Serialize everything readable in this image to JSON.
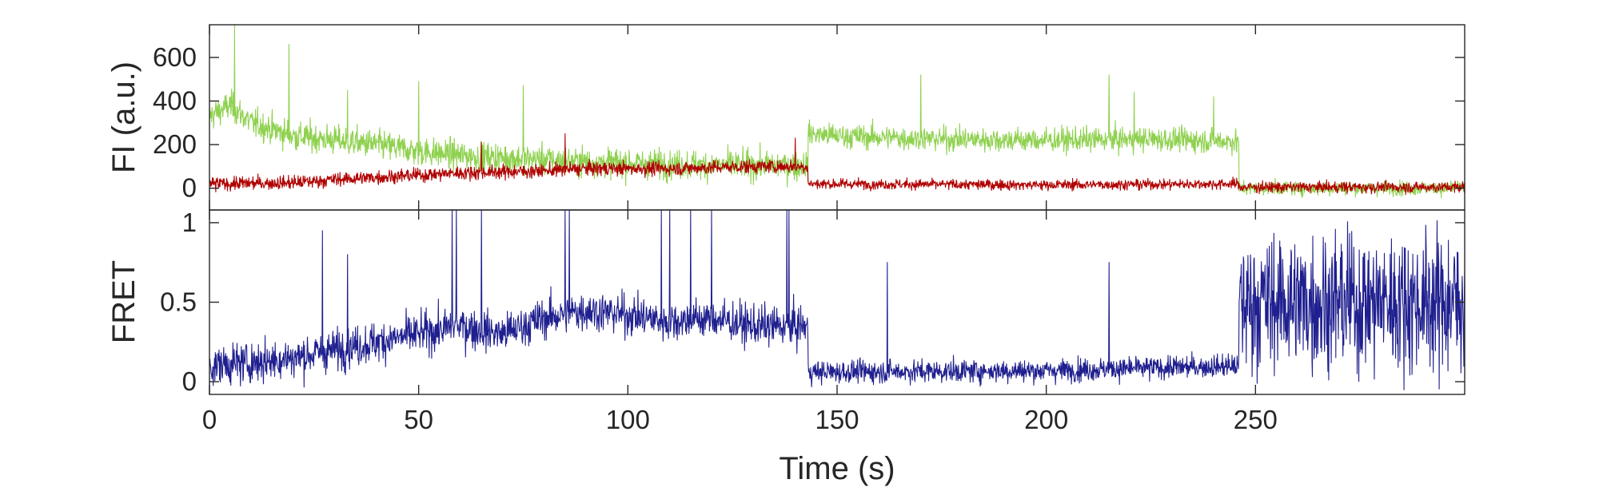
{
  "chart_data": [
    {
      "type": "line",
      "panel": "top",
      "title": "",
      "xlabel": "",
      "ylabel": "FI (a.u.)",
      "xlim": [
        0,
        300
      ],
      "ylim": [
        -100,
        750
      ],
      "xticks": [
        0,
        50,
        100,
        150,
        200,
        250
      ],
      "yticks": [
        0,
        200,
        400,
        600
      ],
      "ytick_labels": [
        "0",
        "200",
        "400",
        "600"
      ],
      "grid": false,
      "legend": "none",
      "series": [
        {
          "color": "#8fd14f",
          "segments": [
            {
              "x": [
                0,
                5,
                10,
                20,
                30,
                40,
                50,
                60,
                70,
                80,
                90,
                100,
                110,
                120,
                130,
                140,
                143
              ],
              "y": [
                330,
                380,
                300,
                240,
                220,
                200,
                170,
                150,
                140,
                130,
                120,
                115,
                110,
                105,
                105,
                105,
                105
              ],
              "noise": 85
            },
            {
              "x": [
                143,
                150,
                175,
                200,
                225,
                246
              ],
              "y": [
                250,
                240,
                225,
                220,
                225,
                215
              ],
              "noise": 70
            },
            {
              "x": [
                246,
                300
              ],
              "y": [
                0,
                0
              ],
              "noise": 40
            }
          ],
          "spikes": [
            [
              6,
              750
            ],
            [
              19,
              660
            ],
            [
              33,
              450
            ],
            [
              50,
              490
            ],
            [
              75,
              470
            ],
            [
              170,
              520
            ],
            [
              215,
              520
            ],
            [
              221,
              440
            ],
            [
              240,
              420
            ]
          ]
        },
        {
          "color": "#b00000",
          "segments": [
            {
              "x": [
                0,
                20,
                30,
                40,
                50,
                60,
                70,
                80,
                90,
                100,
                110,
                120,
                130,
                140,
                143
              ],
              "y": [
                20,
                25,
                40,
                50,
                60,
                70,
                75,
                80,
                90,
                90,
                90,
                95,
                100,
                100,
                100
              ],
              "noise": 40
            },
            {
              "x": [
                143,
                200,
                246
              ],
              "y": [
                20,
                15,
                20
              ],
              "noise": 30
            },
            {
              "x": [
                246,
                300
              ],
              "y": [
                5,
                5
              ],
              "noise": 32
            }
          ],
          "spikes": [
            [
              85,
              250
            ],
            [
              140,
              230
            ],
            [
              65,
              210
            ]
          ]
        }
      ]
    },
    {
      "type": "line",
      "panel": "bottom",
      "title": "",
      "xlabel": "Time (s)",
      "ylabel": "FRET",
      "xlim": [
        0,
        300
      ],
      "ylim": [
        -0.08,
        1.08
      ],
      "xticks": [
        0,
        50,
        100,
        150,
        200,
        250
      ],
      "xtick_labels": [
        "0",
        "50",
        "100",
        "150",
        "200",
        "250"
      ],
      "yticks": [
        0,
        0.5,
        1
      ],
      "ytick_labels": [
        "0",
        "0.5",
        "1"
      ],
      "grid": false,
      "legend": "none",
      "series": [
        {
          "color": "#1f1f8f",
          "segments": [
            {
              "x": [
                0,
                10,
                20,
                30,
                40,
                50,
                60,
                70,
                80,
                90,
                100,
                110,
                120,
                130,
                140,
                143
              ],
              "y": [
                0.1,
                0.12,
                0.15,
                0.2,
                0.25,
                0.3,
                0.35,
                0.3,
                0.4,
                0.45,
                0.42,
                0.38,
                0.4,
                0.35,
                0.35,
                0.35
              ],
              "noise": 0.16
            },
            {
              "x": [
                143,
                200,
                246
              ],
              "y": [
                0.06,
                0.07,
                0.1
              ],
              "noise": 0.09
            },
            {
              "x": [
                246,
                300
              ],
              "y": [
                0.5,
                0.5
              ],
              "noise": 0.55
            }
          ],
          "spikes": [
            [
              27,
              0.95
            ],
            [
              33,
              0.8
            ],
            [
              58,
              1.08
            ],
            [
              59,
              1.08
            ],
            [
              65,
              1.08
            ],
            [
              85,
              1.08
            ],
            [
              86,
              1.08
            ],
            [
              108,
              1.08
            ],
            [
              110,
              1.08
            ],
            [
              115,
              1.08
            ],
            [
              120,
              1.08
            ],
            [
              138,
              1.08
            ],
            [
              138.5,
              1.08
            ],
            [
              162,
              0.75
            ],
            [
              215,
              0.75
            ]
          ]
        }
      ]
    }
  ]
}
